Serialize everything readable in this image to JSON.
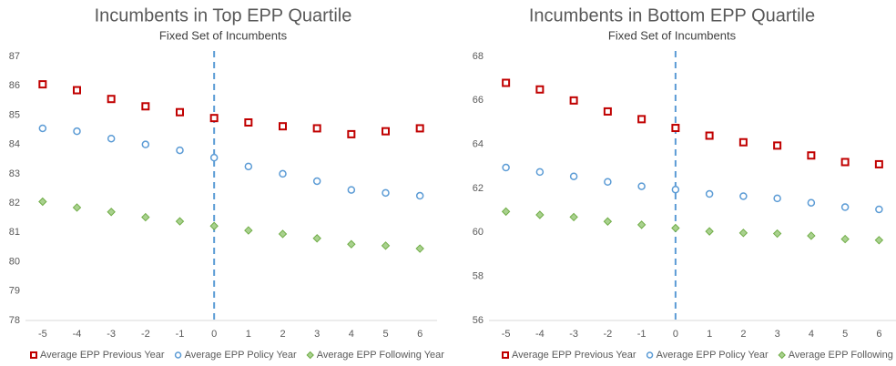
{
  "chart_data": [
    {
      "type": "scatter",
      "title": "Incumbents in Top EPP Quartile",
      "subtitle": "Fixed Set of Incumbents",
      "x": [
        -5,
        -4,
        -3,
        -2,
        -1,
        0,
        1,
        2,
        3,
        4,
        5,
        6
      ],
      "xlim": [
        -5.5,
        6.5
      ],
      "xticks": [
        -5,
        -4,
        -3,
        -2,
        -1,
        0,
        1,
        2,
        3,
        4,
        5,
        6
      ],
      "ylim": [
        78,
        87
      ],
      "yticks": [
        78,
        79,
        80,
        81,
        82,
        83,
        84,
        85,
        86,
        87
      ],
      "vline": 0,
      "legend": "bottom",
      "series": [
        {
          "name": "Average EPP Previous Year",
          "color": "#c00000",
          "marker": "square",
          "values": [
            86.05,
            85.85,
            85.55,
            85.3,
            85.1,
            84.9,
            84.75,
            84.62,
            84.55,
            84.35,
            84.45,
            84.55
          ]
        },
        {
          "name": "Average EPP Policy Year",
          "color": "#5b9bd5",
          "marker": "circle",
          "values": [
            84.55,
            84.45,
            84.2,
            84.0,
            83.8,
            83.55,
            83.25,
            83.0,
            82.75,
            82.45,
            82.35,
            82.25
          ]
        },
        {
          "name": "Average EPP Following Year",
          "color": "#70ad47",
          "marker": "diamond",
          "values": [
            82.05,
            81.85,
            81.7,
            81.52,
            81.38,
            81.22,
            81.07,
            80.95,
            80.8,
            80.6,
            80.55,
            80.45
          ]
        }
      ]
    },
    {
      "type": "scatter",
      "title": "Incumbents in Bottom EPP Quartile",
      "subtitle": "Fixed Set of Incumbents",
      "x": [
        -5,
        -4,
        -3,
        -2,
        -1,
        0,
        1,
        2,
        3,
        4,
        5,
        6
      ],
      "xlim": [
        -5.5,
        6.5
      ],
      "xticks": [
        -5,
        -4,
        -3,
        -2,
        -1,
        0,
        1,
        2,
        3,
        4,
        5,
        6
      ],
      "ylim": [
        56,
        68
      ],
      "yticks": [
        56,
        58,
        60,
        62,
        64,
        66,
        68
      ],
      "vline": 0,
      "legend": "bottom",
      "series": [
        {
          "name": "Average EPP Previous Year",
          "color": "#c00000",
          "marker": "square",
          "values": [
            66.8,
            66.5,
            66.0,
            65.5,
            65.15,
            64.75,
            64.4,
            64.1,
            63.95,
            63.5,
            63.2,
            63.1
          ]
        },
        {
          "name": "Average EPP Policy Year",
          "color": "#5b9bd5",
          "marker": "circle",
          "values": [
            62.95,
            62.75,
            62.55,
            62.3,
            62.1,
            61.95,
            61.75,
            61.65,
            61.55,
            61.35,
            61.15,
            61.05
          ]
        },
        {
          "name": "Average EPP Following Year",
          "color": "#70ad47",
          "marker": "diamond",
          "values": [
            60.95,
            60.8,
            60.7,
            60.5,
            60.35,
            60.2,
            60.05,
            59.98,
            59.95,
            59.85,
            59.7,
            59.65
          ]
        }
      ]
    }
  ]
}
